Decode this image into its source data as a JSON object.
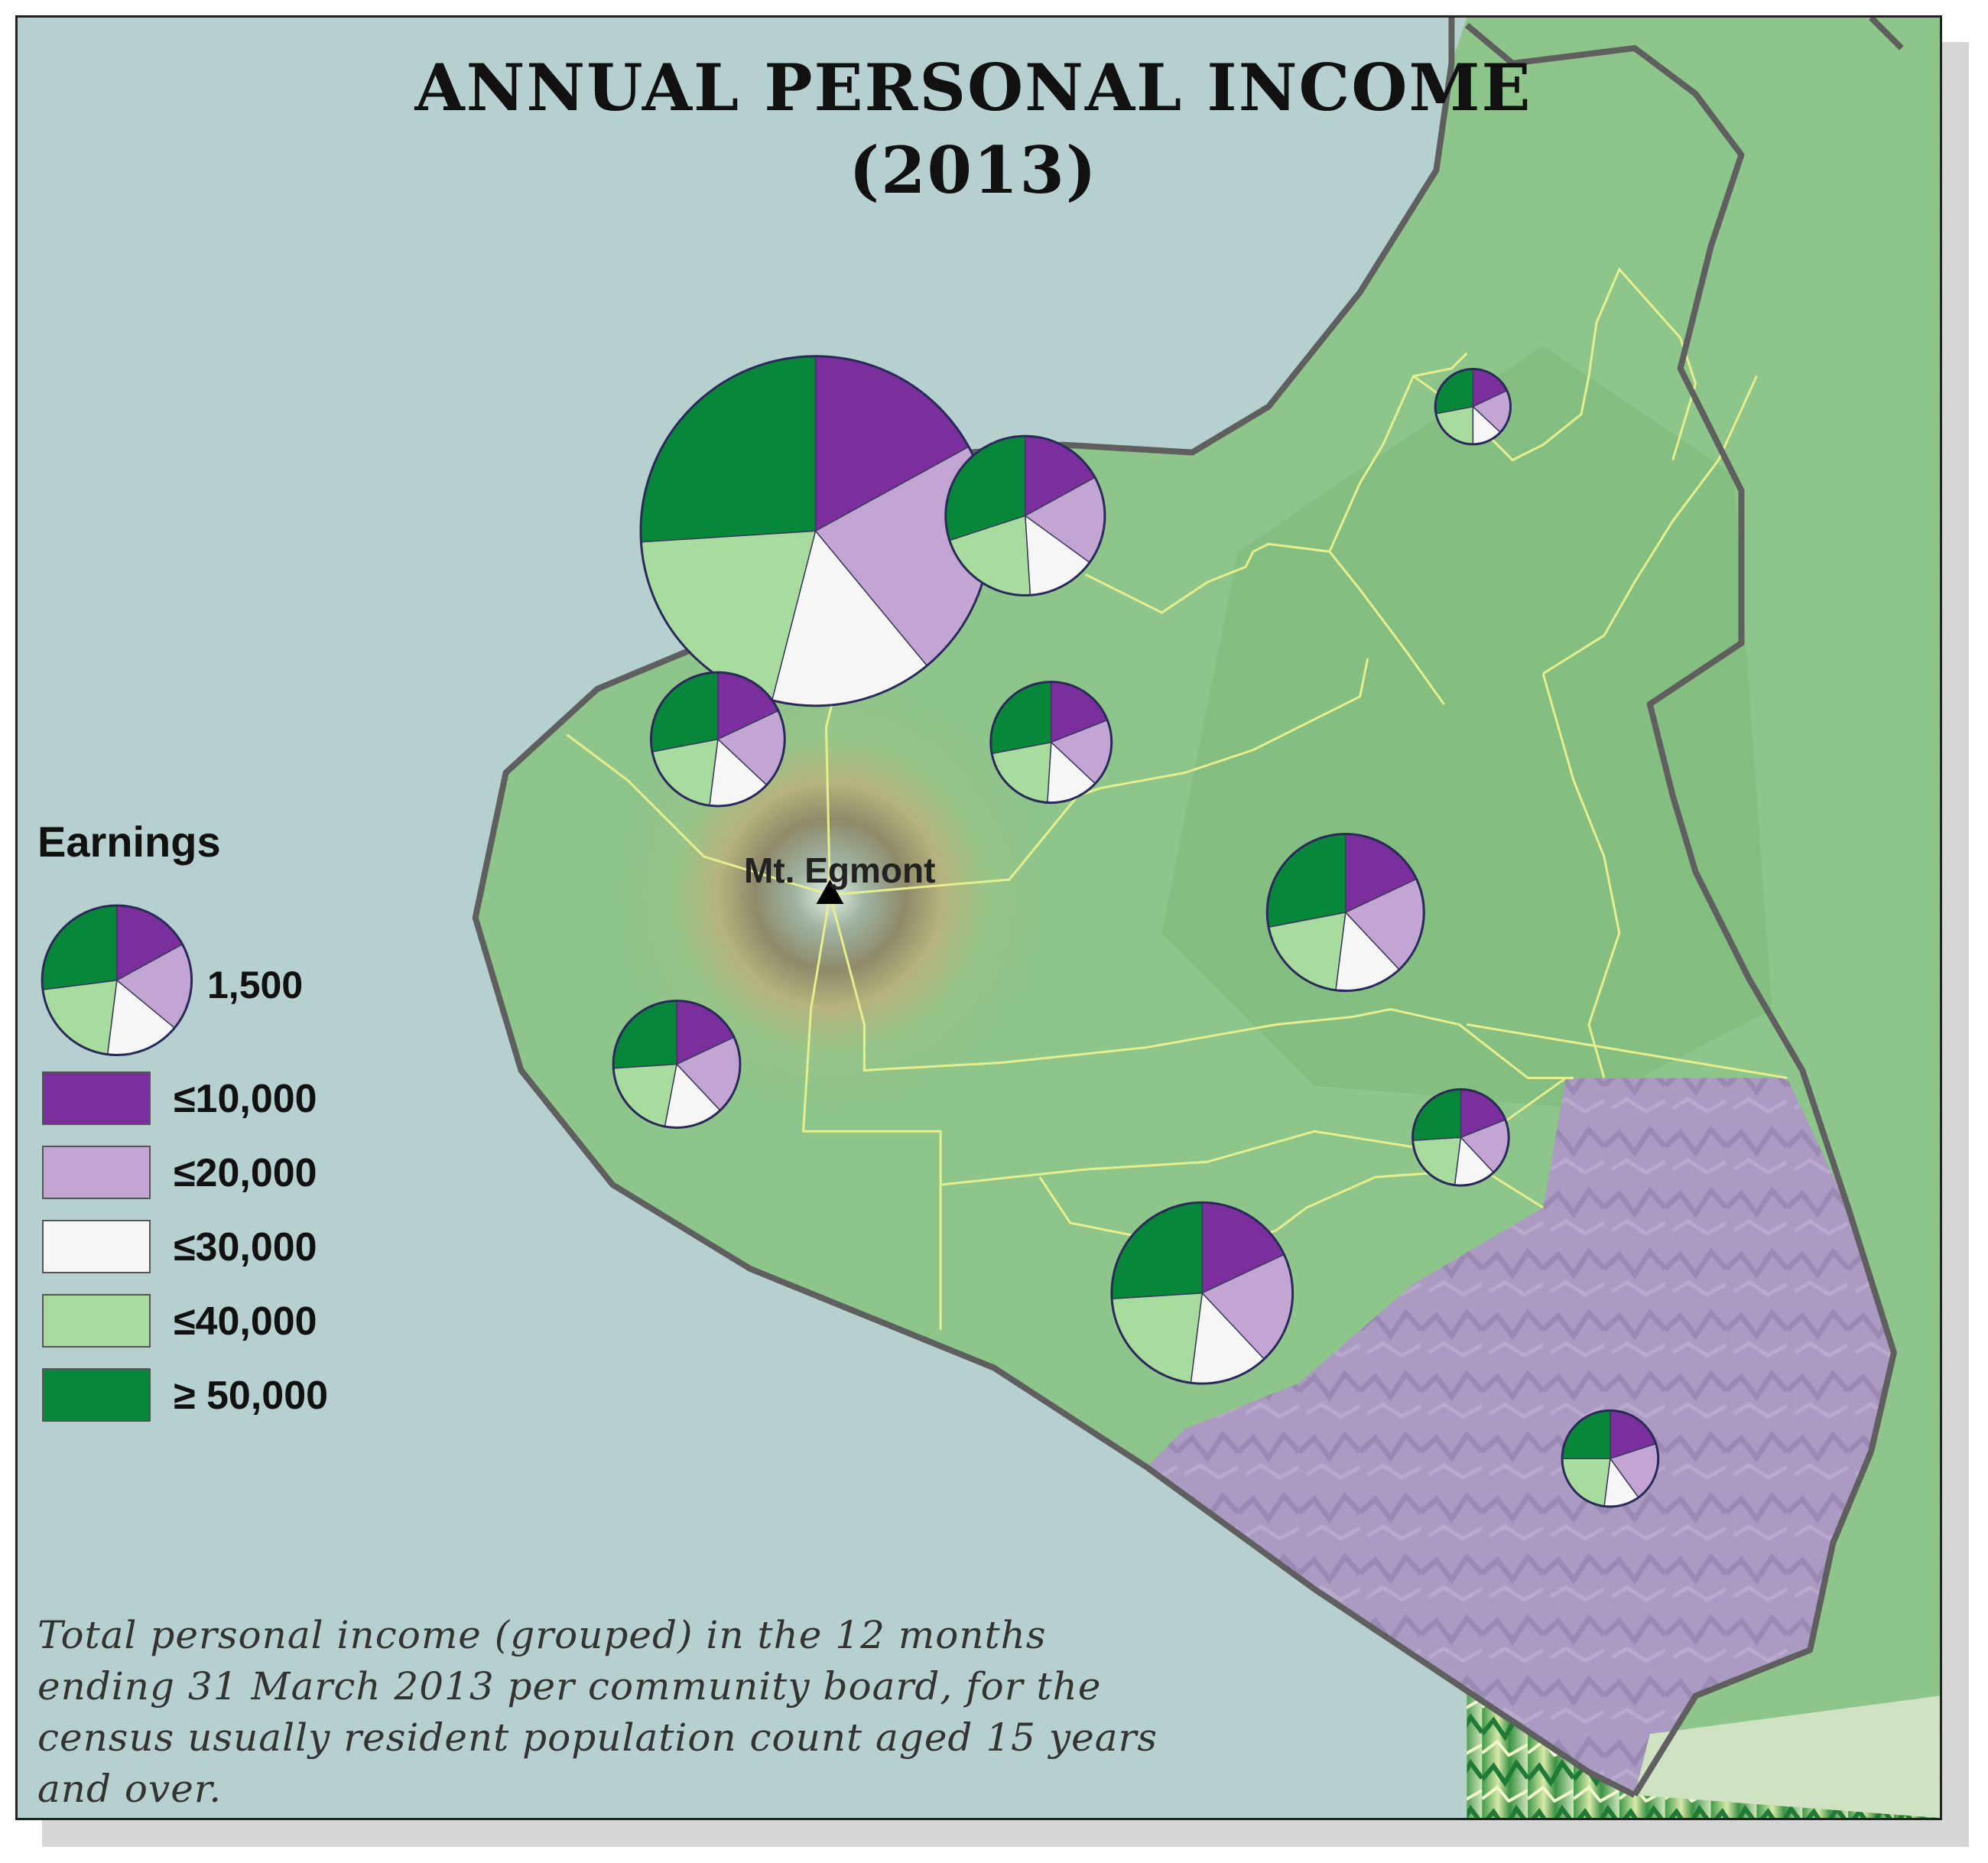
{
  "title": {
    "line1": "ANNUAL PERSONAL INCOME",
    "line2": "(2013)"
  },
  "peak": {
    "name": "Mt. Egmont",
    "icon": "triangle-icon"
  },
  "legend": {
    "heading": "Earnings",
    "size_value": "1,500",
    "classes": [
      {
        "label": "≤10,000",
        "color": "#7b2f9d"
      },
      {
        "label": "≤20,000",
        "color": "#c3a5d3"
      },
      {
        "label": "≤30,000",
        "color": "#f6f6f6"
      },
      {
        "label": "≤40,000",
        "color": "#a8dc9e"
      },
      {
        "label": "≥ 50,000",
        "color": "#07873a"
      }
    ]
  },
  "caption": "Total personal income (grouped) in the 12 months ending 31 March 2013 per community board, for the census usually resident population count aged 15 years and over.",
  "colors": {
    "sea": "#b6d0cf",
    "land": "#8dc58a",
    "southern_district": "#ab9ac2",
    "coastline": "#5f5f5f",
    "boundary": "#e6ef8e"
  },
  "chart_data": {
    "type": "pie",
    "categories": [
      "≤10,000",
      "≤20,000",
      "≤30,000",
      "≤40,000",
      "≥ 50,000"
    ],
    "reference_total": 1500,
    "pies": [
      {
        "total": 8200,
        "values": [
          0.17,
          0.22,
          0.15,
          0.2,
          0.26
        ]
      },
      {
        "total": 1700,
        "values": [
          0.17,
          0.18,
          0.14,
          0.21,
          0.3
        ]
      },
      {
        "total": 380,
        "values": [
          0.18,
          0.19,
          0.13,
          0.22,
          0.28
        ]
      },
      {
        "total": 980,
        "values": [
          0.19,
          0.18,
          0.14,
          0.21,
          0.28
        ]
      },
      {
        "total": 1200,
        "values": [
          0.18,
          0.19,
          0.15,
          0.2,
          0.28
        ]
      },
      {
        "total": 1650,
        "values": [
          0.18,
          0.2,
          0.14,
          0.2,
          0.28
        ]
      },
      {
        "total": 1080,
        "values": [
          0.18,
          0.2,
          0.15,
          0.21,
          0.26
        ]
      },
      {
        "total": 620,
        "values": [
          0.19,
          0.19,
          0.14,
          0.22,
          0.26
        ]
      },
      {
        "total": 2200,
        "values": [
          0.18,
          0.2,
          0.14,
          0.22,
          0.26
        ]
      },
      {
        "total": 620,
        "values": [
          0.2,
          0.2,
          0.12,
          0.23,
          0.25
        ]
      }
    ],
    "legend_pie": {
      "total": 1500,
      "values": [
        0.17,
        0.19,
        0.16,
        0.21,
        0.27
      ]
    }
  }
}
